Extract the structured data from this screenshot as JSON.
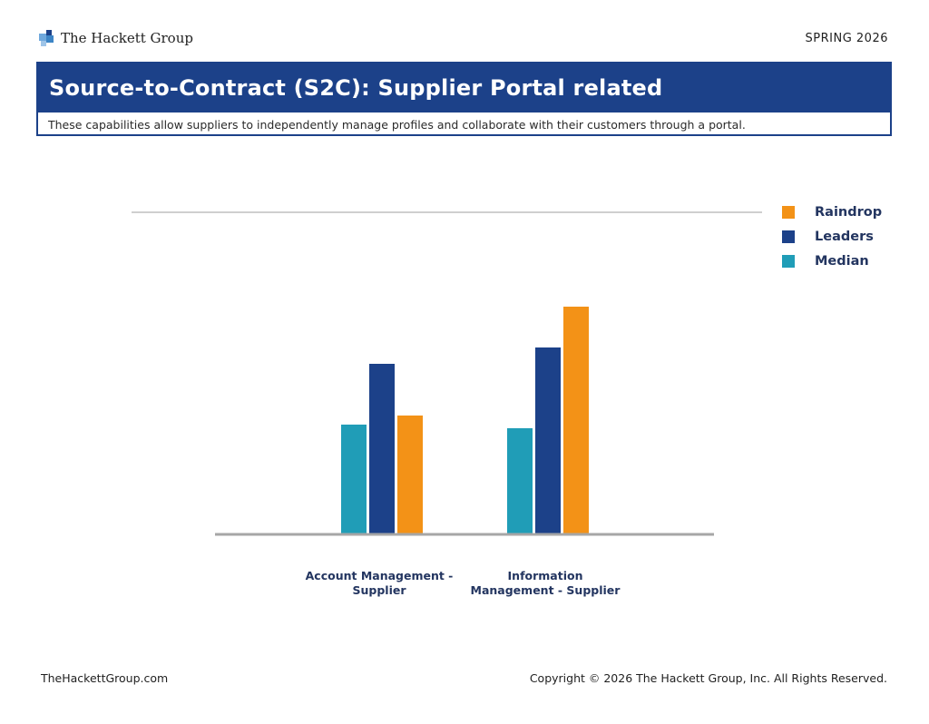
{
  "header": {
    "logo_text": "The Hackett Group",
    "season": "SPRING 2026"
  },
  "title": {
    "main": "Source-to-Contract (S2C): Supplier Portal related",
    "subtitle": "These capabilities allow suppliers to independently manage profiles and collaborate with their customers through a portal."
  },
  "colors": {
    "brand_blue": "#1c4189",
    "raindrop": "#f39217",
    "leaders": "#1c4189",
    "median": "#209db7"
  },
  "chart_data": {
    "type": "bar",
    "categories": [
      [
        "Account Management -",
        "Supplier"
      ],
      [
        "Information",
        "Management - Supplier"
      ]
    ],
    "series": [
      {
        "name": "Median",
        "color": "#209db7",
        "values": [
          120,
          116
        ]
      },
      {
        "name": "Leaders",
        "color": "#1c4189",
        "values": [
          187,
          205
        ]
      },
      {
        "name": "Raindrop",
        "color": "#f39217",
        "values": [
          130,
          250
        ]
      }
    ],
    "legend_order": [
      "Raindrop",
      "Leaders",
      "Median"
    ],
    "legend_position": "top-right",
    "ylim": [
      0,
      355
    ],
    "grid": false,
    "title": "",
    "xlabel": "",
    "ylabel": ""
  },
  "footer": {
    "website": "TheHackettGroup.com",
    "copyright": "Copyright © 2026 The Hackett Group, Inc. All Rights Reserved."
  }
}
